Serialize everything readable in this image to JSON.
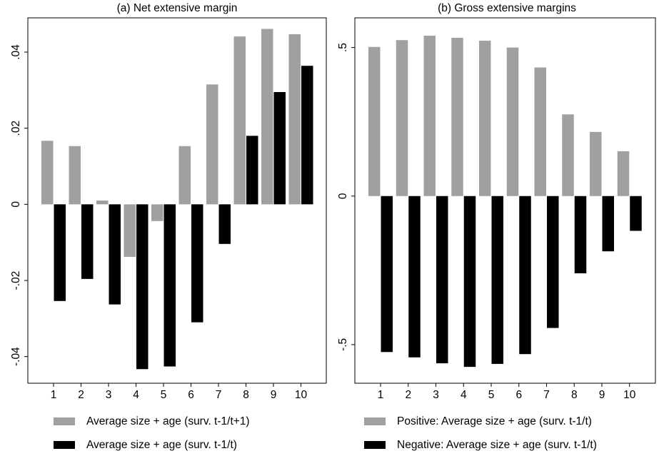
{
  "chart_data": [
    {
      "type": "bar",
      "title": "(a) Net extensive margin",
      "categories": [
        "1",
        "2",
        "3",
        "4",
        "5",
        "6",
        "7",
        "8",
        "9",
        "10"
      ],
      "ylim": [
        -0.047,
        0.049
      ],
      "yticks": [
        -0.04,
        -0.02,
        0,
        0.02,
        0.04
      ],
      "ytick_labels": [
        "-.04",
        "-.02",
        "0",
        ".02",
        ".04"
      ],
      "grid": false,
      "legend_position": "bottom",
      "series": [
        {
          "name": "Average size + age (surv. t-1/t+1)",
          "color": "#a0a0a0",
          "values": [
            0.0167,
            0.0153,
            0.001,
            -0.0138,
            -0.0044,
            0.0153,
            0.0315,
            0.0441,
            0.0461,
            0.0447
          ]
        },
        {
          "name": "Average size + age (surv. t-1/t)",
          "color": "#000000",
          "values": [
            -0.0254,
            -0.0196,
            -0.0263,
            -0.0433,
            -0.0426,
            -0.031,
            -0.0104,
            0.018,
            0.0295,
            0.0364
          ]
        }
      ]
    },
    {
      "type": "bar",
      "title": "(b) Gross extensive margins",
      "categories": [
        "1",
        "2",
        "3",
        "4",
        "5",
        "6",
        "7",
        "8",
        "9",
        "10"
      ],
      "ylim": [
        -0.63,
        0.6
      ],
      "yticks": [
        -0.5,
        0,
        0.5
      ],
      "ytick_labels": [
        "-.5",
        "0",
        ".5"
      ],
      "grid": false,
      "legend_position": "bottom",
      "series": [
        {
          "name": "Positive: Average size + age (surv. t-1/t)",
          "color": "#a0a0a0",
          "values": [
            0.502,
            0.525,
            0.54,
            0.533,
            0.523,
            0.5,
            0.433,
            0.275,
            0.216,
            0.151
          ]
        },
        {
          "name": "Negative: Average size + age (surv. t-1/t)",
          "color": "#000000",
          "values": [
            -0.525,
            -0.543,
            -0.563,
            -0.575,
            -0.565,
            -0.532,
            -0.444,
            -0.26,
            -0.186,
            -0.117
          ]
        }
      ]
    }
  ]
}
